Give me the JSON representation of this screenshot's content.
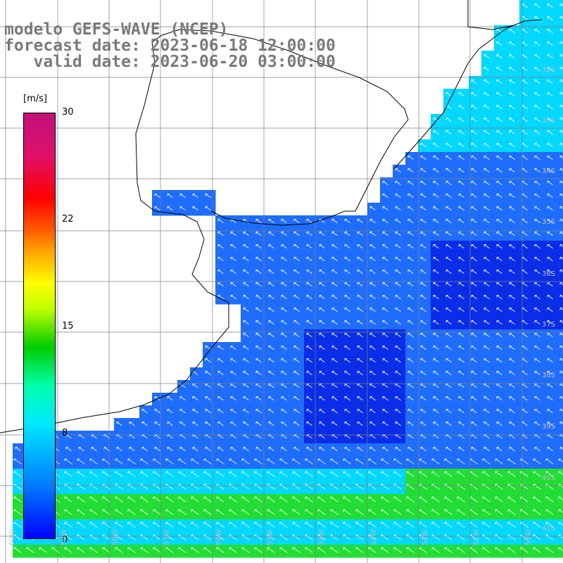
{
  "title": {
    "line1": "modelo GEFS-WAVE (NCEP)",
    "line2": "forecast date: 2023-06-18 12:00:00",
    "line3": "   valid date: 2023-06-20 03:00:00"
  },
  "colorbar": {
    "unit": "[m/s]",
    "ticks": [
      "30",
      "22",
      "15",
      "8",
      "0"
    ],
    "tick_values": [
      30,
      22,
      15,
      8,
      0
    ]
  },
  "lat_labels": [
    "32S",
    "33S",
    "34S",
    "35S",
    "36S",
    "37S",
    "38S",
    "39S",
    "40S",
    "41S"
  ],
  "lon_labels": [
    "60W",
    "59W",
    "58W",
    "57W",
    "56W",
    "55W",
    "54W",
    "53W",
    "52W",
    "51W",
    "50W"
  ],
  "colors": {
    "land": "#ffffff",
    "deep_blue": "#0a2ee8",
    "mid_blue": "#1f6dff",
    "cyan": "#00d8ff",
    "green": "#22dd33",
    "arrow": "#ffffff",
    "grid": "#7f7f7f",
    "coast": "#000000"
  }
}
